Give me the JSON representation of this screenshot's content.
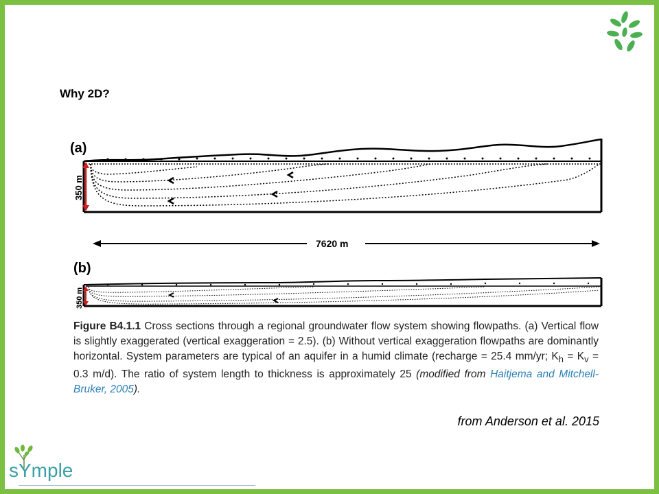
{
  "slide": {
    "title": "Why 2D?",
    "source": "from Anderson et al. 2015",
    "brand": "sYmple",
    "colors": {
      "border": "#7cc043",
      "leaf": "#4caf50",
      "brand": "#3aa0a8",
      "link": "#2a7fb5",
      "arrow_red": "#d21f1f"
    }
  },
  "figure": {
    "panel_a_label": "(a)",
    "panel_b_label": "(b)",
    "thickness_label_a": "350 m",
    "thickness_label_b": "350 m",
    "length_label": "7620 m"
  },
  "caption": {
    "figure_number": "Figure B4.1.1",
    "text_1": " Cross sections through a regional groundwater flow system showing flowpaths. (a) Vertical flow is slightly exaggerated (vertical exaggeration = 2.5). (b) Without vertical exaggeration flowpaths are dominantly horizontal. System parameters are typical of an aquifer in a humid climate (recharge = 25.4 mm/yr; K",
    "sub_h": "h",
    "text_2": " = K",
    "sub_v": "v",
    "text_3": " = 0.3 m/d). The ratio of system length to thickness is approximately 25 ",
    "modified_from": "(modified from ",
    "citation_link": "Haitjema and Mitchell-Bruker, 2005",
    "close": ")."
  }
}
